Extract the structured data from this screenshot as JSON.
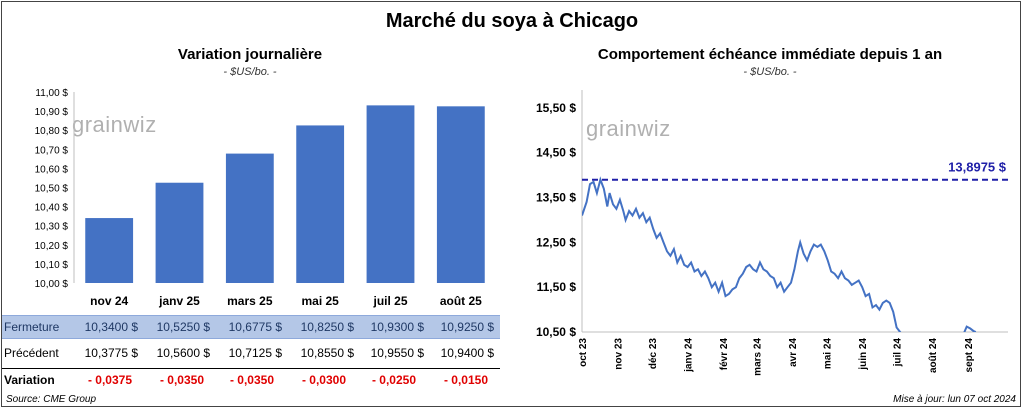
{
  "title": "Marché du soya à Chicago",
  "left_chart": {
    "title": "Variation  journalière",
    "unit": "- $US/bo. -",
    "watermark": "grainwiz"
  },
  "right_chart": {
    "title": "Comportement  échéance immédiate depuis 1 an",
    "unit": "- $US/bo. -",
    "watermark": "grainwiz",
    "max_label": "13,8975  $"
  },
  "table": {
    "row_close_label": "Fermeture",
    "row_prev_label": "Précédent",
    "row_var_label": "Variation",
    "close": [
      "10,3400  $",
      "10,5250  $",
      "10,6775  $",
      "10,8250  $",
      "10,9300  $",
      "10,9250  $"
    ],
    "prev": [
      "10,3775  $",
      "10,5600  $",
      "10,7125  $",
      "10,8550  $",
      "10,9550  $",
      "10,9400  $"
    ],
    "var": [
      "- 0,0375",
      "- 0,0350",
      "- 0,0350",
      "- 0,0300",
      "- 0,0250",
      "- 0,0150"
    ]
  },
  "footer": {
    "source": "Source: CME Group",
    "updated": "Mise à jour: lun 07 oct 2024"
  },
  "chart_data": [
    {
      "type": "bar",
      "categories": [
        "nov 24",
        "janv 25",
        "mars 25",
        "mai 25",
        "juil 25",
        "août 25"
      ],
      "values": [
        10.34,
        10.525,
        10.6775,
        10.825,
        10.93,
        10.925
      ],
      "ylim": [
        10.0,
        11.0
      ],
      "yticks": [
        "10,00 $",
        "10,10 $",
        "10,20 $",
        "10,30 $",
        "10,40 $",
        "10,50 $",
        "10,60 $",
        "10,70 $",
        "10,80 $",
        "10,90 $",
        "11,00 $"
      ],
      "color": "#4472c4",
      "grid": false
    },
    {
      "type": "line",
      "color": "#4472c4",
      "reference_line": {
        "value": 13.8975,
        "color": "#1f1fa8",
        "style": "dashed"
      },
      "ylim": [
        10.5,
        15.9
      ],
      "yticks": [
        {
          "v": 10.5,
          "l": "10,50 $"
        },
        {
          "v": 11.5,
          "l": "11,50 $"
        },
        {
          "v": 12.5,
          "l": "12,50 $"
        },
        {
          "v": 13.5,
          "l": "13,50 $"
        },
        {
          "v": 14.5,
          "l": "14,50 $"
        },
        {
          "v": 15.5,
          "l": "15,50 $"
        }
      ],
      "xlim": [
        0,
        371
      ],
      "xticks": [
        {
          "d": 0,
          "l": "oct 23"
        },
        {
          "d": 31,
          "l": "nov 23"
        },
        {
          "d": 61,
          "l": "déc 23"
        },
        {
          "d": 92,
          "l": "janv 24"
        },
        {
          "d": 123,
          "l": "févr 24"
        },
        {
          "d": 152,
          "l": "mars 24"
        },
        {
          "d": 183,
          "l": "avr 24"
        },
        {
          "d": 213,
          "l": "mai 24"
        },
        {
          "d": 244,
          "l": "juin 24"
        },
        {
          "d": 274,
          "l": "juil 24"
        },
        {
          "d": 305,
          "l": "août 24"
        },
        {
          "d": 336,
          "l": "sept 24"
        }
      ],
      "grid": false,
      "series": [
        {
          "points": [
            [
              0,
              13.1
            ],
            [
              4,
              13.4
            ],
            [
              7,
              13.8
            ],
            [
              10,
              13.85
            ],
            [
              13,
              13.6
            ],
            [
              16,
              13.9
            ],
            [
              19,
              13.7
            ],
            [
              22,
              13.3
            ],
            [
              24,
              13.6
            ],
            [
              27,
              13.35
            ],
            [
              30,
              13.25
            ],
            [
              33,
              13.45
            ],
            [
              36,
              13.2
            ],
            [
              38,
              13.0
            ],
            [
              41,
              13.2
            ],
            [
              44,
              13.1
            ],
            [
              47,
              13.25
            ],
            [
              50,
              13.05
            ],
            [
              53,
              13.15
            ],
            [
              56,
              12.95
            ],
            [
              59,
              13.05
            ],
            [
              62,
              12.8
            ],
            [
              65,
              12.6
            ],
            [
              68,
              12.7
            ],
            [
              71,
              12.5
            ],
            [
              74,
              12.3
            ],
            [
              77,
              12.2
            ],
            [
              80,
              12.35
            ],
            [
              83,
              12.05
            ],
            [
              86,
              12.2
            ],
            [
              89,
              12.0
            ],
            [
              92,
              11.95
            ],
            [
              95,
              12.05
            ],
            [
              98,
              11.85
            ],
            [
              101,
              11.9
            ],
            [
              104,
              11.75
            ],
            [
              107,
              11.85
            ],
            [
              110,
              11.7
            ],
            [
              113,
              11.5
            ],
            [
              116,
              11.6
            ],
            [
              119,
              11.4
            ],
            [
              122,
              11.6
            ],
            [
              125,
              11.3
            ],
            [
              128,
              11.35
            ],
            [
              131,
              11.45
            ],
            [
              134,
              11.5
            ],
            [
              137,
              11.7
            ],
            [
              140,
              11.8
            ],
            [
              143,
              11.95
            ],
            [
              146,
              12.0
            ],
            [
              149,
              11.9
            ],
            [
              152,
              11.85
            ],
            [
              155,
              12.05
            ],
            [
              158,
              11.9
            ],
            [
              161,
              11.85
            ],
            [
              164,
              11.75
            ],
            [
              167,
              11.7
            ],
            [
              170,
              11.5
            ],
            [
              173,
              11.6
            ],
            [
              176,
              11.4
            ],
            [
              179,
              11.5
            ],
            [
              182,
              11.6
            ],
            [
              185,
              11.9
            ],
            [
              188,
              12.3
            ],
            [
              190,
              12.5
            ],
            [
              193,
              12.25
            ],
            [
              196,
              12.1
            ],
            [
              199,
              12.3
            ],
            [
              202,
              12.45
            ],
            [
              205,
              12.4
            ],
            [
              208,
              12.45
            ],
            [
              211,
              12.3
            ],
            [
              214,
              12.1
            ],
            [
              217,
              11.85
            ],
            [
              220,
              11.8
            ],
            [
              223,
              11.7
            ],
            [
              226,
              11.85
            ],
            [
              229,
              11.7
            ],
            [
              232,
              11.65
            ],
            [
              235,
              11.55
            ],
            [
              238,
              11.6
            ],
            [
              241,
              11.65
            ],
            [
              244,
              11.5
            ],
            [
              247,
              11.3
            ],
            [
              250,
              11.35
            ],
            [
              253,
              11.05
            ],
            [
              256,
              11.1
            ],
            [
              259,
              11.0
            ],
            [
              262,
              11.15
            ],
            [
              265,
              11.2
            ],
            [
              268,
              11.15
            ],
            [
              271,
              10.95
            ],
            [
              274,
              10.6
            ],
            [
              277,
              10.5
            ],
            [
              292,
              10.0
            ],
            [
              330,
              10.05
            ],
            [
              333,
              10.5
            ],
            [
              335,
              10.62
            ],
            [
              338,
              10.58
            ],
            [
              341,
              10.52
            ],
            [
              343,
              10.5
            ]
          ]
        }
      ]
    }
  ]
}
